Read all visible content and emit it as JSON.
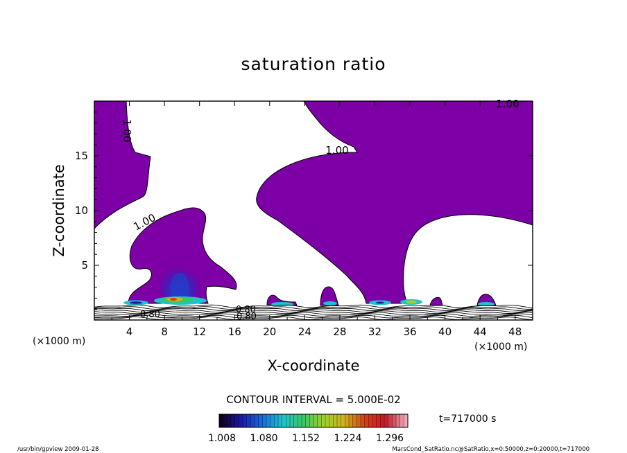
{
  "chart_data": {
    "type": "contour",
    "title": "saturation ratio",
    "xlabel": "X-coordinate",
    "ylabel": "Z-coordinate",
    "x_unit_left": "(×1000 m)",
    "x_unit_right": "(×1000 m)",
    "xlim": [
      0,
      50
    ],
    "ylim": [
      0,
      20
    ],
    "x_ticks": [
      4,
      8,
      12,
      16,
      20,
      24,
      28,
      32,
      36,
      40,
      44,
      48
    ],
    "y_ticks": [
      5,
      10,
      15
    ],
    "contour_interval_text": "CONTOUR INTERVAL = 5.000E-02",
    "time_text": "t=717000 s",
    "colorbar_labels": [
      "1.008",
      "1.080",
      "1.152",
      "1.224",
      "1.296"
    ],
    "colorbar_range": [
      1.008,
      1.296
    ],
    "contour_labels": [
      "1.00",
      "1.00",
      "1.00",
      "1.00",
      "0.80",
      "0.80",
      "0.80"
    ],
    "fill_color": "#7c00a6",
    "colorbar_colors": [
      "#100020",
      "#1a1aa8",
      "#1b6bd8",
      "#1fc2d0",
      "#38c860",
      "#9ed22a",
      "#d0b020",
      "#d04018",
      "#c01a2a",
      "#f0a8b8"
    ],
    "footer_left": "/usr/bin/gpview   2009-01-28",
    "footer_right": "MarsCond_SatRatio.nc@SatRatio,x=0:50000,z=0:20000,t=717000"
  }
}
